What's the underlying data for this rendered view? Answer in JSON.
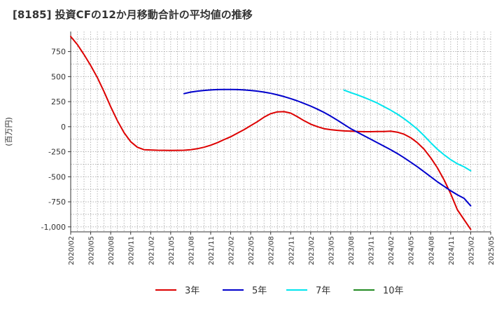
{
  "title": "[8185]  投資CFの12か月移動合計の平均値の推移",
  "chart_data": {
    "type": "line",
    "title": "[8185]  投資CFの12か月移動合計の平均値の推移",
    "ylabel": "(百万円)",
    "xlabel": "",
    "ylim": [
      -1050,
      950
    ],
    "yticks": [
      750,
      500,
      250,
      0,
      -250,
      -500,
      -750,
      -1000
    ],
    "ytick_labels": [
      "750",
      "500",
      "250",
      "0",
      "-250",
      "-500",
      "-750",
      "-1,000"
    ],
    "x_start": "2020-02",
    "x_end": "2025-05",
    "xtick_labels": [
      "2020/02",
      "2020/05",
      "2020/08",
      "2020/11",
      "2021/02",
      "2021/05",
      "2021/08",
      "2021/11",
      "2022/02",
      "2022/05",
      "2022/08",
      "2022/11",
      "2023/02",
      "2023/05",
      "2023/08",
      "2023/11",
      "2024/02",
      "2024/05",
      "2024/08",
      "2024/11",
      "2025/02",
      "2025/05"
    ],
    "grid": true,
    "legend_position": "bottom",
    "series": [
      {
        "name": "3年",
        "color": "#dd0000",
        "points": [
          [
            "2020-02",
            900
          ],
          [
            "2020-03",
            820
          ],
          [
            "2020-04",
            720
          ],
          [
            "2020-05",
            610
          ],
          [
            "2020-06",
            490
          ],
          [
            "2020-07",
            350
          ],
          [
            "2020-08",
            200
          ],
          [
            "2020-09",
            60
          ],
          [
            "2020-10",
            -60
          ],
          [
            "2020-11",
            -150
          ],
          [
            "2020-12",
            -205
          ],
          [
            "2021-01",
            -230
          ],
          [
            "2021-03",
            -235
          ],
          [
            "2021-05",
            -237
          ],
          [
            "2021-07",
            -235
          ],
          [
            "2021-08",
            -230
          ],
          [
            "2021-09",
            -220
          ],
          [
            "2021-10",
            -205
          ],
          [
            "2021-11",
            -185
          ],
          [
            "2021-12",
            -160
          ],
          [
            "2022-01",
            -130
          ],
          [
            "2022-02",
            -100
          ],
          [
            "2022-03",
            -65
          ],
          [
            "2022-04",
            -30
          ],
          [
            "2022-05",
            10
          ],
          [
            "2022-06",
            50
          ],
          [
            "2022-07",
            95
          ],
          [
            "2022-08",
            130
          ],
          [
            "2022-09",
            148
          ],
          [
            "2022-10",
            150
          ],
          [
            "2022-11",
            135
          ],
          [
            "2022-12",
            100
          ],
          [
            "2023-01",
            60
          ],
          [
            "2023-02",
            25
          ],
          [
            "2023-03",
            0
          ],
          [
            "2023-04",
            -20
          ],
          [
            "2023-05",
            -30
          ],
          [
            "2023-06",
            -37
          ],
          [
            "2023-07",
            -42
          ],
          [
            "2023-08",
            -45
          ],
          [
            "2023-09",
            -48
          ],
          [
            "2023-10",
            -50
          ],
          [
            "2023-11",
            -50
          ],
          [
            "2023-12",
            -48
          ],
          [
            "2024-01",
            -48
          ],
          [
            "2024-02",
            -45
          ],
          [
            "2024-03",
            -55
          ],
          [
            "2024-04",
            -75
          ],
          [
            "2024-05",
            -110
          ],
          [
            "2024-06",
            -160
          ],
          [
            "2024-07",
            -225
          ],
          [
            "2024-08",
            -310
          ],
          [
            "2024-09",
            -410
          ],
          [
            "2024-10",
            -530
          ],
          [
            "2024-11",
            -670
          ],
          [
            "2024-12",
            -830
          ],
          [
            "2025-02",
            -1025
          ]
        ]
      },
      {
        "name": "5年",
        "color": "#0000cc",
        "points": [
          [
            "2021-07",
            330
          ],
          [
            "2021-08",
            345
          ],
          [
            "2021-09",
            355
          ],
          [
            "2021-10",
            362
          ],
          [
            "2021-11",
            367
          ],
          [
            "2021-12",
            370
          ],
          [
            "2022-01",
            372
          ],
          [
            "2022-02",
            372
          ],
          [
            "2022-03",
            370
          ],
          [
            "2022-04",
            367
          ],
          [
            "2022-05",
            362
          ],
          [
            "2022-06",
            355
          ],
          [
            "2022-07",
            345
          ],
          [
            "2022-08",
            333
          ],
          [
            "2022-09",
            318
          ],
          [
            "2022-10",
            300
          ],
          [
            "2022-11",
            280
          ],
          [
            "2022-12",
            258
          ],
          [
            "2023-01",
            232
          ],
          [
            "2023-02",
            205
          ],
          [
            "2023-03",
            175
          ],
          [
            "2023-04",
            142
          ],
          [
            "2023-05",
            105
          ],
          [
            "2023-06",
            65
          ],
          [
            "2023-07",
            22
          ],
          [
            "2023-08",
            -20
          ],
          [
            "2023-09",
            -55
          ],
          [
            "2023-10",
            -90
          ],
          [
            "2023-11",
            -125
          ],
          [
            "2023-12",
            -160
          ],
          [
            "2024-01",
            -195
          ],
          [
            "2024-02",
            -230
          ],
          [
            "2024-03",
            -268
          ],
          [
            "2024-04",
            -310
          ],
          [
            "2024-05",
            -355
          ],
          [
            "2024-06",
            -400
          ],
          [
            "2024-07",
            -450
          ],
          [
            "2024-08",
            -500
          ],
          [
            "2024-09",
            -550
          ],
          [
            "2024-10",
            -595
          ],
          [
            "2024-11",
            -640
          ],
          [
            "2024-12",
            -680
          ],
          [
            "2025-01",
            -715
          ],
          [
            "2025-02",
            -790
          ]
        ]
      },
      {
        "name": "7年",
        "color": "#00e5ee",
        "points": [
          [
            "2023-07",
            365
          ],
          [
            "2023-08",
            340
          ],
          [
            "2023-09",
            318
          ],
          [
            "2023-10",
            292
          ],
          [
            "2023-11",
            265
          ],
          [
            "2023-12",
            235
          ],
          [
            "2024-01",
            200
          ],
          [
            "2024-02",
            165
          ],
          [
            "2024-03",
            125
          ],
          [
            "2024-04",
            80
          ],
          [
            "2024-05",
            30
          ],
          [
            "2024-06",
            -25
          ],
          [
            "2024-07",
            -90
          ],
          [
            "2024-08",
            -160
          ],
          [
            "2024-09",
            -225
          ],
          [
            "2024-10",
            -280
          ],
          [
            "2024-11",
            -330
          ],
          [
            "2024-12",
            -370
          ],
          [
            "2025-01",
            -400
          ],
          [
            "2025-02",
            -440
          ]
        ]
      },
      {
        "name": "10年",
        "color": "#228b22",
        "points": []
      }
    ]
  }
}
